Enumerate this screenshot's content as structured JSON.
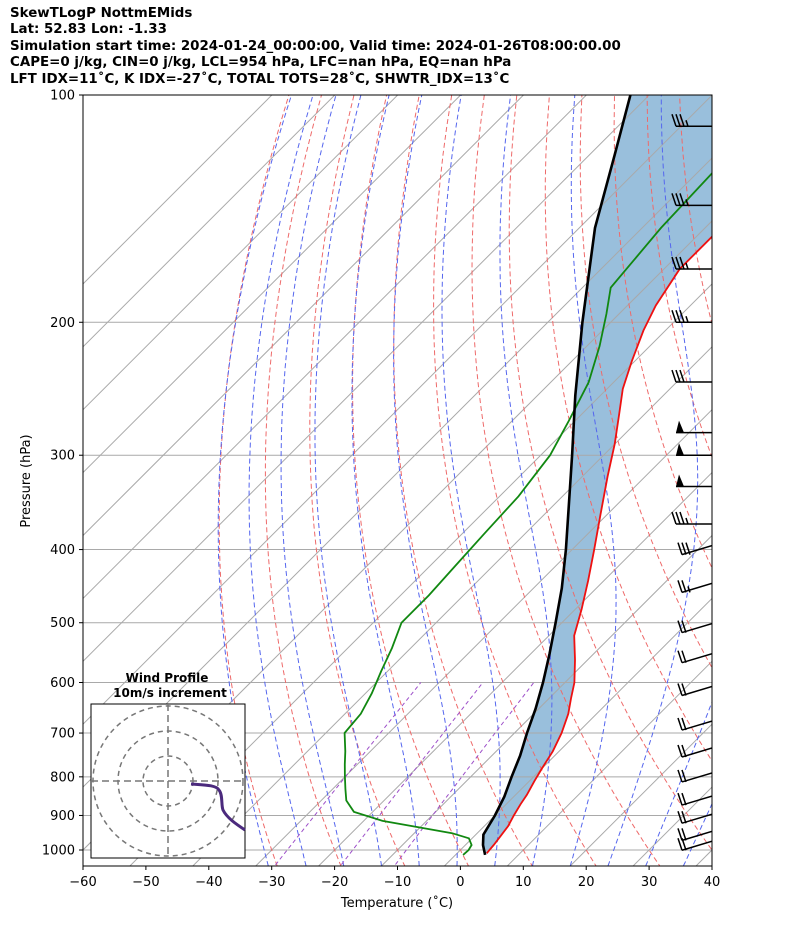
{
  "header": {
    "line1": "SkewTLogP NottmEMids",
    "line2": "Lat: 52.83   Lon: -1.33",
    "line3": "Simulation start time: 2024-01-24_00:00:00, Valid time: 2024-01-26T08:00:00.00",
    "line4": "CAPE=0 j/kg, CIN=0 j/kg, LCL=954 hPa, LFC=nan hPa, EQ=nan hPa",
    "line5": "LFT IDX=11$^\\circ$C, K IDX=-27$^\\circ$C, TOTAL TOTS=28$^\\circ$C, SHWTR_IDX=13$^\\circ$C"
  },
  "header_display": {
    "line5": "LFT IDX=11˚C, K IDX=-27˚C, TOTAL TOTS=28˚C, SHWTR_IDX=13˚C"
  },
  "chart_data": {
    "type": "line",
    "xlabel": "Temperature (˚C)",
    "ylabel": "Pressure (hPa)",
    "xlim": [
      -60,
      40
    ],
    "ylim": [
      1050,
      100
    ],
    "y_scale": "log",
    "grid": true,
    "x_ticks": [
      "−60",
      "−50",
      "−40",
      "−30",
      "−20",
      "−10",
      "0",
      "10",
      "20",
      "30",
      "40"
    ],
    "y_ticks": [
      "100",
      "200",
      "300",
      "400",
      "500",
      "600",
      "700",
      "800",
      "900",
      "1000"
    ],
    "y_tick_values": [
      100,
      200,
      300,
      400,
      500,
      600,
      700,
      800,
      900,
      1000
    ],
    "colors": {
      "temperature": "#ee1111",
      "dewpoint": "#118811",
      "parcel": "#000000",
      "fill": "#99bfdc",
      "dry_adiabat": "#ee6a6a",
      "moist_adiabat": "#5566ee",
      "isotherm": "#a9a9a9",
      "mixing_ratio": "#9d4fc9"
    },
    "series": [
      {
        "key": "temperature",
        "pressure": [
          1010,
          985,
          960,
          930,
          900,
          870,
          845,
          810,
          780,
          740,
          700,
          660,
          630,
          600,
          560,
          520,
          480,
          440,
          400,
          360,
          320,
          290,
          265,
          245,
          225,
          205,
          190,
          170,
          150,
          130,
          110,
          100
        ],
        "values": [
          4.7,
          4.5,
          4.2,
          3.8,
          3.0,
          2.3,
          1.8,
          0.8,
          0.0,
          -1.0,
          -2.5,
          -4.5,
          -6.5,
          -8.5,
          -12,
          -16,
          -19,
          -22.5,
          -26.5,
          -31,
          -36,
          -40,
          -44,
          -47.5,
          -50.5,
          -53.5,
          -55.5,
          -57.5,
          -57.5,
          -56.5,
          -54.5,
          -52.8
        ]
      },
      {
        "key": "dewpoint",
        "pressure": [
          1015,
          1000,
          985,
          965,
          950,
          935,
          915,
          890,
          860,
          830,
          800,
          770,
          740,
          700,
          660,
          620,
          580,
          540,
          500,
          460,
          420,
          380,
          340,
          300,
          270,
          240,
          215,
          195,
          180,
          150,
          130,
          110,
          100
        ],
        "values": [
          1.2,
          1.3,
          1.0,
          -0.5,
          -4,
          -9.5,
          -17,
          -23,
          -26,
          -28,
          -30,
          -32,
          -34,
          -37,
          -37.5,
          -39,
          -41,
          -43,
          -45.5,
          -45.5,
          -46,
          -46.5,
          -47,
          -48.5,
          -51,
          -54,
          -58,
          -62,
          -65.5,
          -67,
          -67.5,
          -68,
          -68.5
        ]
      },
      {
        "key": "parcel",
        "pressure": [
          1015,
          985,
          954,
          900,
          850,
          800,
          750,
          700,
          650,
          600,
          550,
          500,
          450,
          400,
          350,
          300,
          250,
          200,
          150,
          120,
          100
        ],
        "values": [
          4.7,
          2.8,
          1.2,
          0.0,
          -1.5,
          -3.5,
          -5.5,
          -8.0,
          -10.5,
          -13.5,
          -17.0,
          -21.0,
          -25.5,
          -31.0,
          -37.5,
          -45.0,
          -54.0,
          -64.5,
          -77.5,
          -86.0,
          -93.0
        ]
      }
    ],
    "wind_barbs": [
      {
        "p": 110,
        "speed_kt": 35
      },
      {
        "p": 140,
        "speed_kt": 35
      },
      {
        "p": 170,
        "speed_kt": 35
      },
      {
        "p": 200,
        "speed_kt": 35
      },
      {
        "p": 240,
        "speed_kt": 30
      },
      {
        "p": 280,
        "speed_kt": 50
      },
      {
        "p": 300,
        "speed_kt": 50
      },
      {
        "p": 330,
        "speed_kt": 50
      },
      {
        "p": 370,
        "speed_kt": 35
      },
      {
        "p": 410,
        "speed_kt": 30
      },
      {
        "p": 460,
        "speed_kt": 25
      },
      {
        "p": 520,
        "speed_kt": 20
      },
      {
        "p": 570,
        "speed_kt": 20
      },
      {
        "p": 630,
        "speed_kt": 20
      },
      {
        "p": 700,
        "speed_kt": 20
      },
      {
        "p": 760,
        "speed_kt": 20
      },
      {
        "p": 820,
        "speed_kt": 20
      },
      {
        "p": 880,
        "speed_kt": 20
      },
      {
        "p": 930,
        "speed_kt": 20
      },
      {
        "p": 980,
        "speed_kt": 20
      },
      {
        "p": 1010,
        "speed_kt": 20
      }
    ],
    "wind_profile": {
      "title": "Wind Profile",
      "subtitle": "10m/s increment",
      "ring_count": 3,
      "hodograph_color": "#4b2a7d"
    }
  }
}
